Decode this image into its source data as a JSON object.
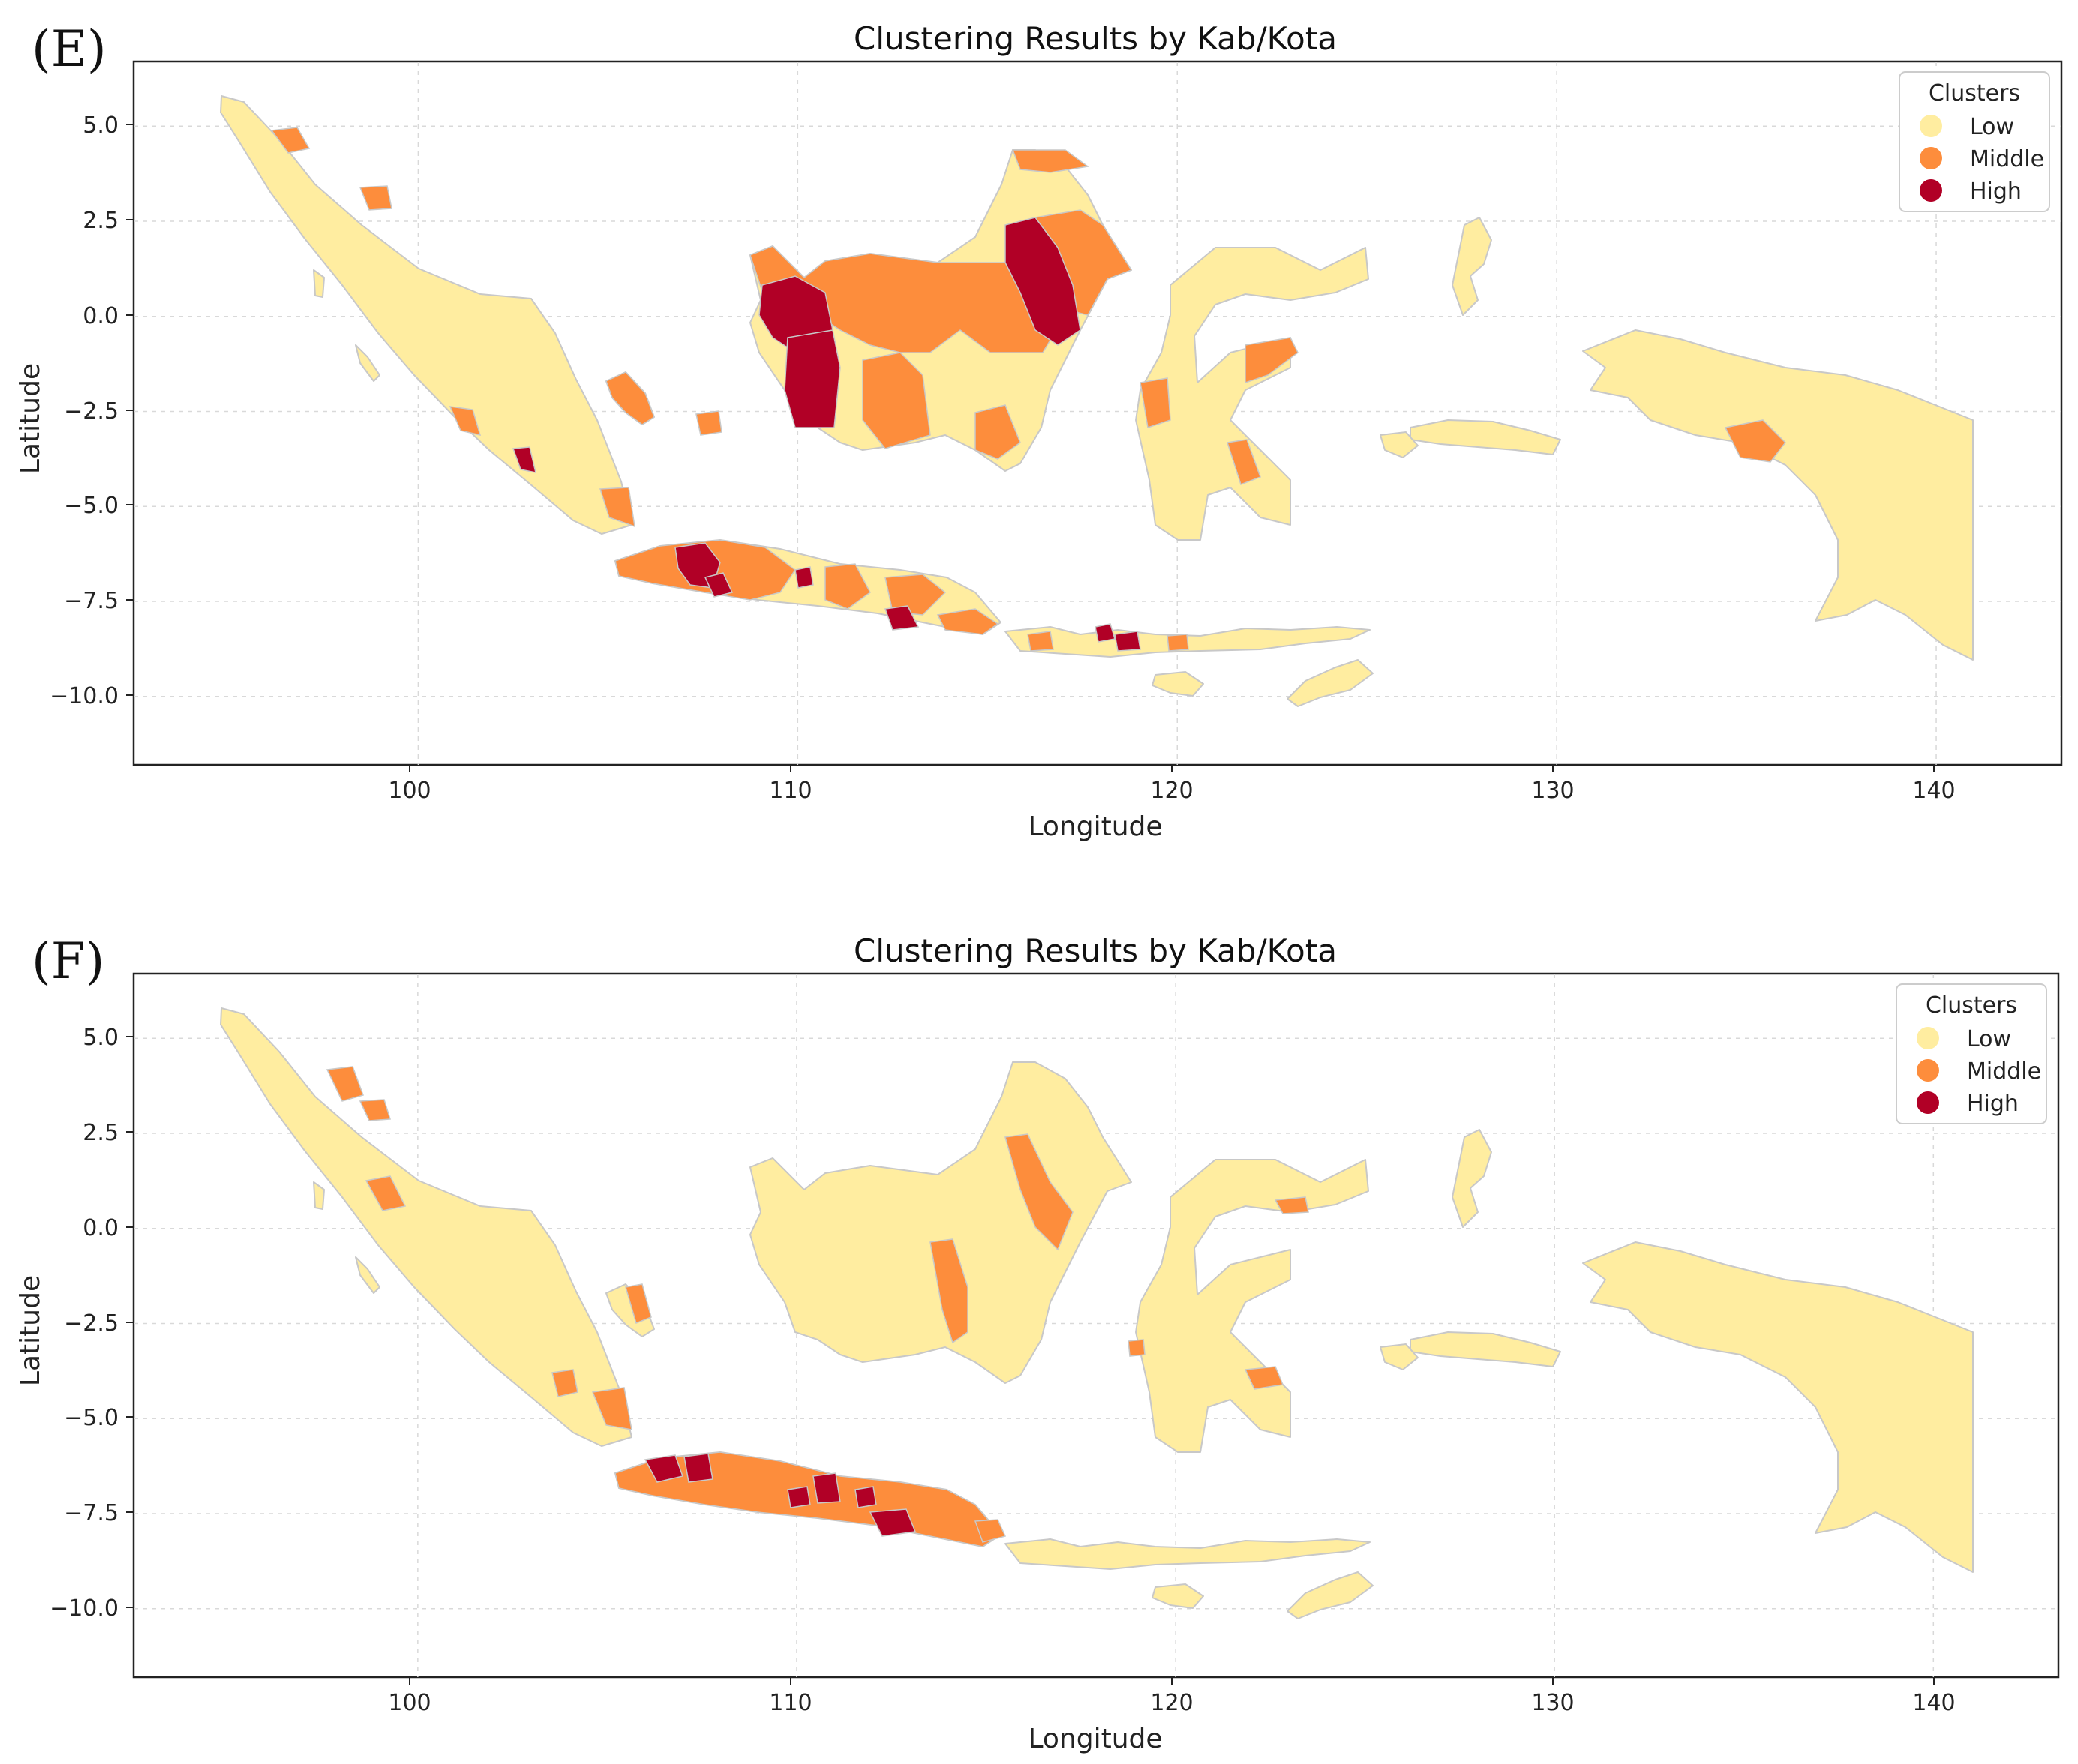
{
  "colors": {
    "low": "#ffeda0",
    "middle": "#fd8d3c",
    "high": "#b10026",
    "border": "#c8c8c8",
    "grid": "#d9d9d9",
    "axis": "#222222"
  },
  "icons": {
    "legend_marker": "filled-circle"
  },
  "panels": [
    {
      "letter": "(E)",
      "title": "Clustering Results by Kab/Kota",
      "xlabel": "Longitude",
      "ylabel": "Latitude",
      "xticks": [
        "100",
        "110",
        "120",
        "130",
        "140"
      ],
      "yticks": [
        "5.0",
        "2.5",
        "0.0",
        "−2.5",
        "−5.0",
        "−7.5",
        "−10.0"
      ],
      "legend": {
        "title": "Clusters",
        "items": [
          "Low",
          "Middle",
          "High"
        ]
      }
    },
    {
      "letter": "(F)",
      "title": "Clustering Results by Kab/Kota",
      "xlabel": "Longitude",
      "ylabel": "Latitude",
      "xticks": [
        "100",
        "110",
        "120",
        "130",
        "140"
      ],
      "yticks": [
        "5.0",
        "2.5",
        "0.0",
        "−2.5",
        "−5.0",
        "−7.5",
        "−10.0"
      ],
      "legend": {
        "title": "Clusters",
        "items": [
          "Low",
          "Middle",
          "High"
        ]
      }
    }
  ],
  "chart_data": [
    {
      "type": "choropleth",
      "title": "Clustering Results by Kab/Kota",
      "xlabel": "Longitude",
      "ylabel": "Latitude",
      "xlim": [
        92.5,
        143.3
      ],
      "ylim": [
        -11.8,
        6.7
      ],
      "xticks": [
        100,
        110,
        120,
        130,
        140
      ],
      "yticks": [
        5.0,
        2.5,
        0.0,
        -2.5,
        -5.0,
        -7.5,
        -10.0
      ],
      "grid": true,
      "legend_position": "top-right",
      "categories": [
        "Low",
        "Middle",
        "High"
      ],
      "highlighted_regions": [
        {
          "cluster": "Middle",
          "lon": 96.8,
          "lat": 4.5
        },
        {
          "cluster": "Middle",
          "lon": 98.2,
          "lat": 3.0
        },
        {
          "cluster": "Middle",
          "lon": 101.3,
          "lat": -2.8
        },
        {
          "cluster": "High",
          "lon": 102.9,
          "lat": -3.8
        },
        {
          "cluster": "Middle",
          "lon": 105.6,
          "lat": -5.0
        },
        {
          "cluster": "Middle",
          "lon": 105.9,
          "lat": -2.1
        },
        {
          "cluster": "Middle",
          "lon": 108.0,
          "lat": -2.8
        },
        {
          "cluster": "Middle",
          "lon": 109.5,
          "lat": 1.0
        },
        {
          "cluster": "High",
          "lon": 109.7,
          "lat": 0.0
        },
        {
          "cluster": "High",
          "lon": 110.6,
          "lat": -1.8
        },
        {
          "cluster": "Middle",
          "lon": 113.0,
          "lat": -0.3
        },
        {
          "cluster": "Middle",
          "lon": 111.5,
          "lat": -2.4
        },
        {
          "cluster": "Middle",
          "lon": 114.8,
          "lat": -3.2
        },
        {
          "cluster": "Middle",
          "lon": 116.8,
          "lat": 4.0
        },
        {
          "cluster": "Middle",
          "lon": 117.3,
          "lat": 1.5
        },
        {
          "cluster": "High",
          "lon": 116.5,
          "lat": 0.2
        },
        {
          "cluster": "Middle",
          "lon": 119.5,
          "lat": -2.5
        },
        {
          "cluster": "Middle",
          "lon": 122.5,
          "lat": -1.0
        },
        {
          "cluster": "Middle",
          "lon": 121.8,
          "lat": -4.0
        },
        {
          "cluster": "Middle",
          "lon": 135.2,
          "lat": -3.3
        },
        {
          "cluster": "Middle",
          "lon": 107.0,
          "lat": -6.7
        },
        {
          "cluster": "High",
          "lon": 107.3,
          "lat": -6.8
        },
        {
          "cluster": "Middle",
          "lon": 109.8,
          "lat": -7.2
        },
        {
          "cluster": "High",
          "lon": 110.8,
          "lat": -7.0
        },
        {
          "cluster": "Middle",
          "lon": 111.5,
          "lat": -7.4
        },
        {
          "cluster": "High",
          "lon": 112.5,
          "lat": -8.0
        },
        {
          "cluster": "Middle",
          "lon": 114.0,
          "lat": -8.1
        },
        {
          "cluster": "Middle",
          "lon": 116.0,
          "lat": -8.5
        },
        {
          "cluster": "High",
          "lon": 118.5,
          "lat": -8.5
        },
        {
          "cluster": "Middle",
          "lon": 120.3,
          "lat": -8.6
        }
      ]
    },
    {
      "type": "choropleth",
      "title": "Clustering Results by Kab/Kota",
      "xlabel": "Longitude",
      "ylabel": "Latitude",
      "xlim": [
        92.5,
        143.3
      ],
      "ylim": [
        -11.8,
        6.7
      ],
      "xticks": [
        100,
        110,
        120,
        130,
        140
      ],
      "yticks": [
        5.0,
        2.5,
        0.0,
        -2.5,
        -5.0,
        -7.5,
        -10.0
      ],
      "grid": true,
      "legend_position": "top-right",
      "categories": [
        "Low",
        "Middle",
        "High"
      ],
      "highlighted_regions": [
        {
          "cluster": "Middle",
          "lon": 97.8,
          "lat": 3.7
        },
        {
          "cluster": "Middle",
          "lon": 98.4,
          "lat": 3.2
        },
        {
          "cluster": "Middle",
          "lon": 99.0,
          "lat": 0.8
        },
        {
          "cluster": "Middle",
          "lon": 104.5,
          "lat": -4.3
        },
        {
          "cluster": "Middle",
          "lon": 105.3,
          "lat": -5.0
        },
        {
          "cluster": "Middle",
          "lon": 106.0,
          "lat": -2.3
        },
        {
          "cluster": "Middle",
          "lon": 114.4,
          "lat": -1.3
        },
        {
          "cluster": "Middle",
          "lon": 116.9,
          "lat": 0.3
        },
        {
          "cluster": "Middle",
          "lon": 119.3,
          "lat": -3.1
        },
        {
          "cluster": "Middle",
          "lon": 122.3,
          "lat": -4.3
        },
        {
          "cluster": "Middle",
          "lon": 123.3,
          "lat": 0.6
        },
        {
          "cluster": "Middle",
          "lon": 107.5,
          "lat": -6.9
        },
        {
          "cluster": "High",
          "lon": 107.0,
          "lat": -6.6
        },
        {
          "cluster": "High",
          "lon": 107.8,
          "lat": -6.7
        },
        {
          "cluster": "Middle",
          "lon": 109.5,
          "lat": -7.2
        },
        {
          "cluster": "High",
          "lon": 110.5,
          "lat": -7.2
        },
        {
          "cluster": "High",
          "lon": 110.9,
          "lat": -6.8
        },
        {
          "cluster": "Middle",
          "lon": 111.8,
          "lat": -7.4
        },
        {
          "cluster": "High",
          "lon": 112.6,
          "lat": -7.9
        },
        {
          "cluster": "Middle",
          "lon": 113.6,
          "lat": -7.9
        }
      ]
    }
  ]
}
